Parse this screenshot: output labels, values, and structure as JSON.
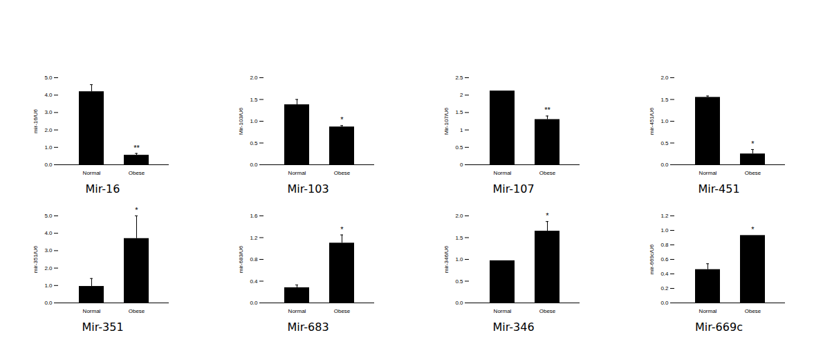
{
  "chart_data": [
    {
      "type": "bar",
      "title": "Mir-16",
      "y_label": "mir-16/U6",
      "color": "#000000",
      "categories": [
        "Normal",
        "Obese"
      ],
      "values": [
        4.2,
        0.55
      ],
      "error": [
        0.4,
        0.1
      ],
      "annotations": [
        null,
        "**"
      ],
      "ylim": [
        0,
        5
      ],
      "yticks": [
        {
          "value": 0,
          "label": "0.0"
        },
        {
          "value": 1,
          "label": "1.0"
        },
        {
          "value": 2,
          "label": "2.0"
        },
        {
          "value": 3,
          "label": "3.0"
        },
        {
          "value": 4,
          "label": "4.0"
        },
        {
          "value": 5,
          "label": "5.0"
        }
      ]
    },
    {
      "type": "bar",
      "title": "Mir-103",
      "y_label": "Mir-103/U6",
      "color": "#000000",
      "categories": [
        "Normal",
        "Obese"
      ],
      "values": [
        1.38,
        0.87
      ],
      "error": [
        0.12,
        0.03
      ],
      "annotations": [
        null,
        "*"
      ],
      "ylim": [
        0,
        2
      ],
      "yticks": [
        {
          "value": 0,
          "label": "0.0"
        },
        0.5,
        {
          "value": 1,
          "label": "1.0"
        },
        1.5,
        {
          "value": 2,
          "label": "2.0"
        }
      ]
    },
    {
      "type": "bar",
      "title": "Mir-107",
      "y_label": "Mir-107/U6",
      "color": "#000000",
      "categories": [
        "Normal",
        "Obese"
      ],
      "values": [
        2.12,
        1.3
      ],
      "error": [
        0,
        0.1
      ],
      "annotations": [
        null,
        "**"
      ],
      "ylim": [
        0,
        2.5
      ],
      "yticks": [
        0,
        0.5,
        1,
        1.5,
        2,
        2.5
      ]
    },
    {
      "type": "bar",
      "title": "Mir-451",
      "y_label": "mir-451/U6",
      "color": "#000000",
      "categories": [
        "Normal",
        "Obese"
      ],
      "values": [
        1.55,
        0.25
      ],
      "error": [
        0.03,
        0.1
      ],
      "annotations": [
        null,
        "*"
      ],
      "ylim": [
        0,
        2
      ],
      "yticks": [
        {
          "value": 0,
          "label": "0.0"
        },
        0.5,
        {
          "value": 1,
          "label": "1.0"
        },
        1.5,
        {
          "value": 2,
          "label": "2.0"
        }
      ]
    },
    {
      "type": "bar",
      "title": "Mir-351",
      "y_label": "mir-351/U6",
      "color": "#000000",
      "categories": [
        "Normal",
        "Obese"
      ],
      "values": [
        0.95,
        3.7
      ],
      "error": [
        0.45,
        1.3
      ],
      "annotations": [
        null,
        "*"
      ],
      "ylim": [
        0,
        5
      ],
      "yticks": [
        {
          "value": 0,
          "label": "0.0"
        },
        {
          "value": 1,
          "label": "1.0"
        },
        {
          "value": 2,
          "label": "2.0"
        },
        {
          "value": 3,
          "label": "3.0"
        },
        {
          "value": 4,
          "label": "4.0"
        },
        {
          "value": 5,
          "label": "5.0"
        }
      ]
    },
    {
      "type": "bar",
      "title": "Mir-683",
      "y_label": "mir-683/U6",
      "color": "#000000",
      "categories": [
        "Normal",
        "Obese"
      ],
      "values": [
        0.28,
        1.1
      ],
      "error": [
        0.05,
        0.15
      ],
      "annotations": [
        null,
        "*"
      ],
      "ylim": [
        0,
        1.6
      ],
      "yticks": [
        {
          "value": 0,
          "label": "0.0"
        },
        0.4,
        0.8,
        1.2,
        1.6
      ]
    },
    {
      "type": "bar",
      "title": "Mir-346",
      "y_label": "mir-346/U6",
      "color": "#000000",
      "categories": [
        "Normal",
        "Obese"
      ],
      "values": [
        0.97,
        1.65
      ],
      "error": [
        0,
        0.22
      ],
      "annotations": [
        null,
        "*"
      ],
      "ylim": [
        0,
        2
      ],
      "yticks": [
        {
          "value": 0,
          "label": "0.0"
        },
        0.5,
        {
          "value": 1,
          "label": "1.0"
        },
        1.5,
        {
          "value": 2,
          "label": "2.0"
        }
      ]
    },
    {
      "type": "bar",
      "title": "Mir-669c",
      "y_label": "mir-669c/U6",
      "color": "#000000",
      "categories": [
        "Normal",
        "Obese"
      ],
      "values": [
        0.46,
        0.93
      ],
      "error": [
        0.08,
        0
      ],
      "annotations": [
        null,
        "*"
      ],
      "ylim": [
        0,
        1.2
      ],
      "yticks": [
        {
          "value": 0,
          "label": "0.0"
        },
        0.2,
        0.4,
        0.6,
        0.8,
        {
          "value": 1,
          "label": "1.0"
        },
        1.2
      ]
    }
  ]
}
